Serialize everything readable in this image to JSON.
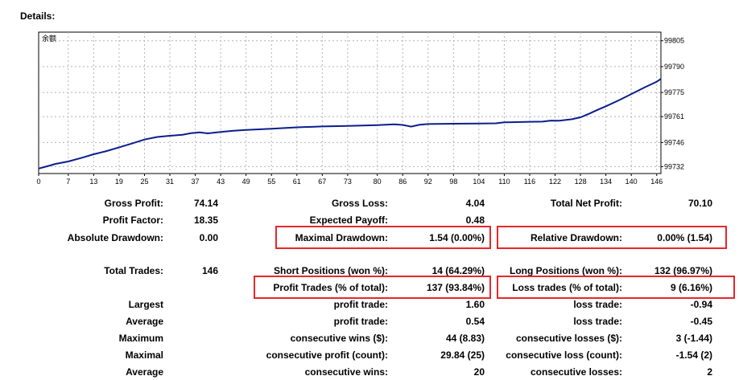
{
  "title": "Details:",
  "chart_legend": "余额",
  "chart_data": {
    "type": "line",
    "x_ticks": [
      0,
      7,
      13,
      19,
      25,
      31,
      37,
      43,
      49,
      55,
      61,
      67,
      73,
      80,
      86,
      92,
      98,
      104,
      110,
      116,
      122,
      128,
      134,
      140,
      146
    ],
    "y_ticks": [
      99732,
      99746,
      99761,
      99775,
      99790,
      99805
    ],
    "xlim": [
      0,
      147
    ],
    "ylim": [
      99728,
      99810
    ],
    "grid": true,
    "color": "#0a1e8c",
    "series": [
      {
        "name": "余额",
        "points": [
          [
            0,
            99730.9
          ],
          [
            2,
            99732.2
          ],
          [
            4,
            99733.6
          ],
          [
            7,
            99735
          ],
          [
            10,
            99737
          ],
          [
            13,
            99739.2
          ],
          [
            16,
            99741
          ],
          [
            19,
            99743.2
          ],
          [
            22,
            99745.4
          ],
          [
            25,
            99747.7
          ],
          [
            28,
            99749.2
          ],
          [
            31,
            99749.9
          ],
          [
            34,
            99750.5
          ],
          [
            36,
            99751.4
          ],
          [
            38,
            99751.9
          ],
          [
            40,
            99751.3
          ],
          [
            43,
            99752.1
          ],
          [
            46,
            99752.8
          ],
          [
            49,
            99753.3
          ],
          [
            55,
            99754
          ],
          [
            61,
            99754.8
          ],
          [
            67,
            99755.3
          ],
          [
            73,
            99755.6
          ],
          [
            80,
            99756.1
          ],
          [
            84,
            99756.5
          ],
          [
            86,
            99756.2
          ],
          [
            88,
            99755.2
          ],
          [
            90,
            99756.3
          ],
          [
            92,
            99756.7
          ],
          [
            98,
            99756.9
          ],
          [
            104,
            99757
          ],
          [
            108,
            99757.1
          ],
          [
            110,
            99757.7
          ],
          [
            116,
            99758
          ],
          [
            119,
            99758.1
          ],
          [
            121,
            99758.7
          ],
          [
            123,
            99758.6
          ],
          [
            126,
            99759.5
          ],
          [
            128,
            99760.6
          ],
          [
            130,
            99762.6
          ],
          [
            132,
            99764.9
          ],
          [
            134,
            99767
          ],
          [
            137,
            99770.4
          ],
          [
            140,
            99774.1
          ],
          [
            143,
            99777.8
          ],
          [
            146,
            99781.2
          ],
          [
            147,
            99782.9
          ]
        ]
      }
    ]
  },
  "stats": {
    "gross_profit_label": "Gross Profit:",
    "gross_profit_value": "74.14",
    "gross_loss_label": "Gross Loss:",
    "gross_loss_value": "4.04",
    "total_net_profit_label": "Total Net Profit:",
    "total_net_profit_value": "70.10",
    "profit_factor_label": "Profit Factor:",
    "profit_factor_value": "18.35",
    "expected_payoff_label": "Expected Payoff:",
    "expected_payoff_value": "0.48",
    "absolute_drawdown_label": "Absolute Drawdown:",
    "absolute_drawdown_value": "0.00",
    "maximal_drawdown_label": "Maximal Drawdown:",
    "maximal_drawdown_value": "1.54 (0.00%)",
    "relative_drawdown_label": "Relative Drawdown:",
    "relative_drawdown_value": "0.00% (1.54)",
    "total_trades_label": "Total Trades:",
    "total_trades_value": "146",
    "short_positions_label": "Short Positions (won %):",
    "short_positions_value": "14 (64.29%)",
    "long_positions_label": "Long Positions (won %):",
    "long_positions_value": "132 (96.97%)",
    "profit_trades_label": "Profit Trades (% of total):",
    "profit_trades_value": "137 (93.84%)",
    "loss_trades_label": "Loss trades (% of total):",
    "loss_trades_value": "9 (6.16%)",
    "largest_label": "Largest",
    "largest_profit_label": "profit trade:",
    "largest_profit_value": "1.60",
    "largest_loss_label": "loss trade:",
    "largest_loss_value": "-0.94",
    "average_label": "Average",
    "average_profit_label": "profit trade:",
    "average_profit_value": "0.54",
    "average_loss_label": "loss trade:",
    "average_loss_value": "-0.45",
    "maximum_label": "Maximum",
    "max_cons_wins_label": "consecutive wins ($):",
    "max_cons_wins_value": "44 (8.83)",
    "max_cons_losses_label": "consecutive losses ($):",
    "max_cons_losses_value": "3 (-1.44)",
    "maximal_label": "Maximal",
    "maximal_cons_profit_label": "consecutive profit (count):",
    "maximal_cons_profit_value": "29.84 (25)",
    "maximal_cons_loss_label": "consecutive loss (count):",
    "maximal_cons_loss_value": "-1.54 (2)",
    "average2_label": "Average",
    "avg_cons_wins_label": "consecutive wins:",
    "avg_cons_wins_value": "20",
    "avg_cons_losses_label": "consecutive losses:",
    "avg_cons_losses_value": "2"
  },
  "highlight_color": "#e8262a"
}
